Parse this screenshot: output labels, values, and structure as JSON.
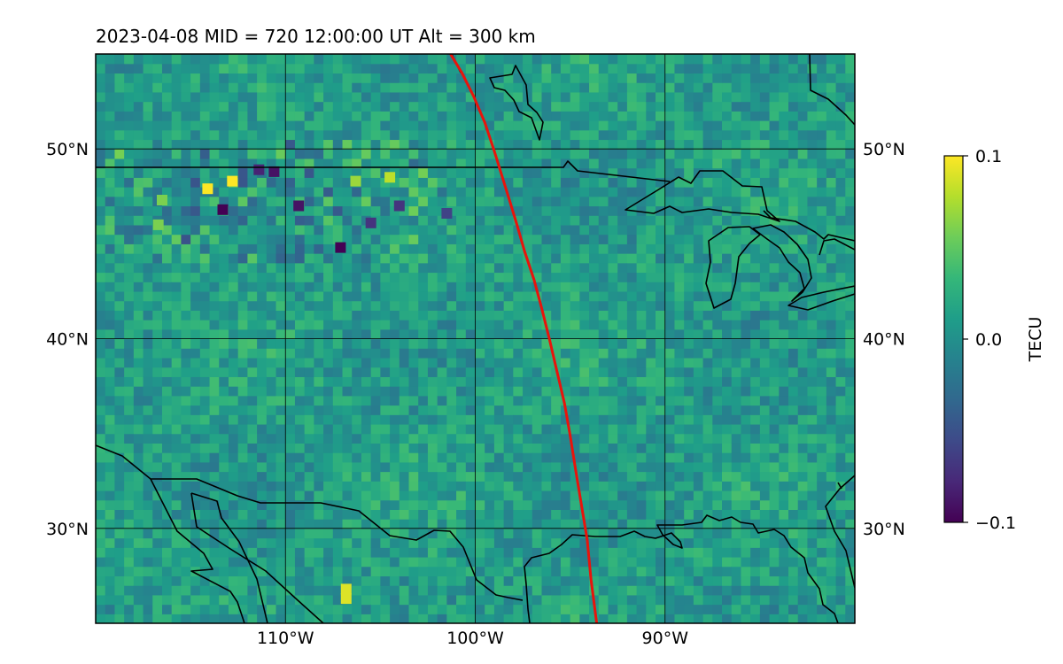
{
  "chart_data": {
    "type": "heatmap",
    "title": "2023-04-08  MID = 720    12:00:00  UT  Alt = 300 km",
    "x_axis": {
      "range_deg_lon": [
        -120,
        -80
      ],
      "ticks": [
        {
          "value": -110,
          "label": "110°W"
        },
        {
          "value": -100,
          "label": "100°W"
        },
        {
          "value": -90,
          "label": "90°W"
        }
      ]
    },
    "y_axis": {
      "range_deg_lat": [
        25,
        55
      ],
      "ticks": [
        {
          "value": 50,
          "label": "50°N"
        },
        {
          "value": 40,
          "label": "40°N"
        },
        {
          "value": 30,
          "label": "30°N"
        }
      ]
    },
    "grid": true,
    "colorbar": {
      "label": "TECU",
      "colormap": "viridis",
      "range": [
        -0.1,
        0.1
      ],
      "ticks": [
        {
          "value": 0.1,
          "label": "0.1"
        },
        {
          "value": 0.0,
          "label": "0.0"
        },
        {
          "value": -0.1,
          "label": "−0.1"
        }
      ]
    },
    "overlay_track": {
      "color": "#e8140c",
      "points": [
        [
          -101.3,
          55
        ],
        [
          -100.7,
          54
        ],
        [
          -100.1,
          52.8
        ],
        [
          -99.5,
          51.4
        ],
        [
          -99.0,
          49.9
        ],
        [
          -98.6,
          48.6
        ],
        [
          -98.2,
          47.3
        ],
        [
          -97.8,
          46.0
        ],
        [
          -97.4,
          44.6
        ],
        [
          -96.9,
          43.1
        ],
        [
          -96.5,
          41.6
        ],
        [
          -96.1,
          40.0
        ],
        [
          -95.7,
          38.3
        ],
        [
          -95.3,
          36.6
        ],
        [
          -95.0,
          34.9
        ],
        [
          -94.7,
          33.0
        ],
        [
          -94.4,
          31.2
        ],
        [
          -94.1,
          29.4
        ],
        [
          -93.9,
          27.3
        ],
        [
          -93.6,
          25
        ]
      ]
    },
    "field_summary": {
      "background_value": 0.01,
      "noise_amplitude": 0.025,
      "noisy_band_lat": [
        44,
        50
      ],
      "noisy_band_lon": [
        -120,
        -102
      ]
    },
    "hotspots": [
      {
        "lon": -114.1,
        "lat": 47.9,
        "value": 0.1
      },
      {
        "lon": -112.8,
        "lat": 48.3,
        "value": 0.1
      },
      {
        "lon": -113.3,
        "lat": 46.8,
        "value": -0.1
      },
      {
        "lon": -110.6,
        "lat": 48.8,
        "value": -0.09
      },
      {
        "lon": -111.4,
        "lat": 48.9,
        "value": -0.08
      },
      {
        "lon": -109.3,
        "lat": 47.0,
        "value": -0.09
      },
      {
        "lon": -107.1,
        "lat": 44.8,
        "value": -0.1
      },
      {
        "lon": -106.8,
        "lat": 26.8,
        "value": 0.09
      },
      {
        "lon": -106.8,
        "lat": 26.3,
        "value": 0.09
      },
      {
        "lon": -104.5,
        "lat": 48.5,
        "value": 0.08
      },
      {
        "lon": -106.3,
        "lat": 48.3,
        "value": 0.07
      },
      {
        "lon": -116.7,
        "lat": 46.0,
        "value": 0.06
      },
      {
        "lon": -116.5,
        "lat": 47.3,
        "value": 0.06
      },
      {
        "lon": -105.5,
        "lat": 46.1,
        "value": -0.07
      },
      {
        "lon": -104.0,
        "lat": 47.0,
        "value": -0.07
      },
      {
        "lon": -101.5,
        "lat": 46.6,
        "value": -0.06
      }
    ]
  }
}
